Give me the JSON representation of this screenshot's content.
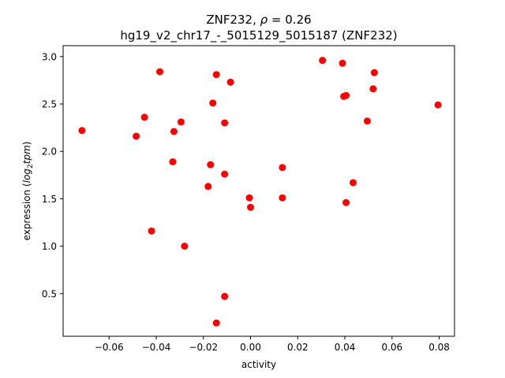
{
  "chart_data": {
    "type": "scatter",
    "title_line1": "ZNF232, ",
    "title_rho_symbol": "ρ",
    "title_rho_value": " = 0.26",
    "title_line2": "hg19_v2_chr17_-_5015129_5015187 (ZNF232)",
    "xlabel": "activity",
    "ylabel_prefix": "expression (",
    "ylabel_log": "log",
    "ylabel_sub": "2",
    "ylabel_tpm": "tpm",
    "ylabel_suffix": ")",
    "xlim": [
      -0.0795,
      0.0865
    ],
    "ylim": [
      0.05,
      3.115
    ],
    "xticks": [
      {
        "value": -0.06,
        "label": "−0.06"
      },
      {
        "value": -0.04,
        "label": "−0.04"
      },
      {
        "value": -0.02,
        "label": "−0.02"
      },
      {
        "value": 0.0,
        "label": "0.00"
      },
      {
        "value": 0.02,
        "label": "0.02"
      },
      {
        "value": 0.04,
        "label": "0.04"
      },
      {
        "value": 0.06,
        "label": "0.06"
      },
      {
        "value": 0.08,
        "label": "0.08"
      }
    ],
    "yticks": [
      {
        "value": 0.5,
        "label": "0.5"
      },
      {
        "value": 1.0,
        "label": "1.0"
      },
      {
        "value": 1.5,
        "label": "1.5"
      },
      {
        "value": 2.0,
        "label": "2.0"
      },
      {
        "value": 2.5,
        "label": "2.5"
      },
      {
        "value": 3.0,
        "label": "3.0"
      }
    ],
    "grid": false,
    "marker_color": "#ff0000",
    "points": [
      {
        "x": -0.0715,
        "y": 2.22
      },
      {
        "x": -0.0485,
        "y": 2.16
      },
      {
        "x": -0.045,
        "y": 2.36
      },
      {
        "x": -0.042,
        "y": 1.16
      },
      {
        "x": -0.0385,
        "y": 2.84
      },
      {
        "x": -0.033,
        "y": 1.89
      },
      {
        "x": -0.0325,
        "y": 2.21
      },
      {
        "x": -0.0295,
        "y": 2.31
      },
      {
        "x": -0.028,
        "y": 1.0
      },
      {
        "x": -0.018,
        "y": 1.63
      },
      {
        "x": -0.017,
        "y": 1.86
      },
      {
        "x": -0.016,
        "y": 2.51
      },
      {
        "x": -0.0145,
        "y": 2.81
      },
      {
        "x": -0.0145,
        "y": 0.19
      },
      {
        "x": -0.011,
        "y": 2.3
      },
      {
        "x": -0.011,
        "y": 1.76
      },
      {
        "x": -0.011,
        "y": 0.47
      },
      {
        "x": -0.0085,
        "y": 2.73
      },
      {
        "x": -0.0005,
        "y": 1.51
      },
      {
        "x": 0.0,
        "y": 1.41
      },
      {
        "x": 0.0135,
        "y": 1.83
      },
      {
        "x": 0.0135,
        "y": 1.51
      },
      {
        "x": 0.0305,
        "y": 2.96
      },
      {
        "x": 0.039,
        "y": 2.93
      },
      {
        "x": 0.0395,
        "y": 2.58
      },
      {
        "x": 0.0405,
        "y": 2.59
      },
      {
        "x": 0.0405,
        "y": 1.46
      },
      {
        "x": 0.0435,
        "y": 1.67
      },
      {
        "x": 0.0495,
        "y": 2.32
      },
      {
        "x": 0.052,
        "y": 2.66
      },
      {
        "x": 0.0525,
        "y": 2.83
      },
      {
        "x": 0.0795,
        "y": 2.49
      }
    ]
  }
}
